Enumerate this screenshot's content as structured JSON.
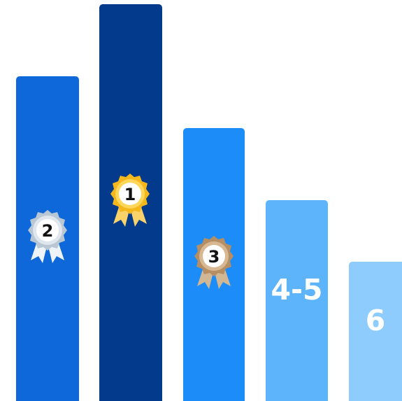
{
  "podium": {
    "places": [
      {
        "id": "place-2",
        "label": "2",
        "display": "medal",
        "medal_type": "silver-medal-icon",
        "bar_color": "#0f68d9",
        "medal_colors": {
          "outer": "#b9c6d4",
          "inner": "#dfe6ee",
          "ribbon": "#eef3f8",
          "center": "#ffffff",
          "text": "#111111"
        }
      },
      {
        "id": "place-1",
        "label": "1",
        "display": "medal",
        "medal_type": "gold-medal-icon",
        "bar_color": "#043a8c",
        "medal_colors": {
          "outer": "#f5b81c",
          "inner": "#fdd65a",
          "ribbon": "#f9d36a",
          "center": "#ffffff",
          "text": "#111111"
        }
      },
      {
        "id": "place-3",
        "label": "3",
        "display": "medal",
        "medal_type": "bronze-medal-icon",
        "bar_color": "#1b8cf8",
        "medal_colors": {
          "outer": "#b58e64",
          "inner": "#d8b892",
          "ribbon": "#d1b793",
          "center": "#ffffff",
          "text": "#111111"
        }
      },
      {
        "id": "place-4-5",
        "label": "4-5",
        "display": "text",
        "bar_color": "#5eb4fb"
      },
      {
        "id": "place-6",
        "label": "6",
        "display": "text",
        "bar_color": "#8dccfd"
      }
    ]
  }
}
